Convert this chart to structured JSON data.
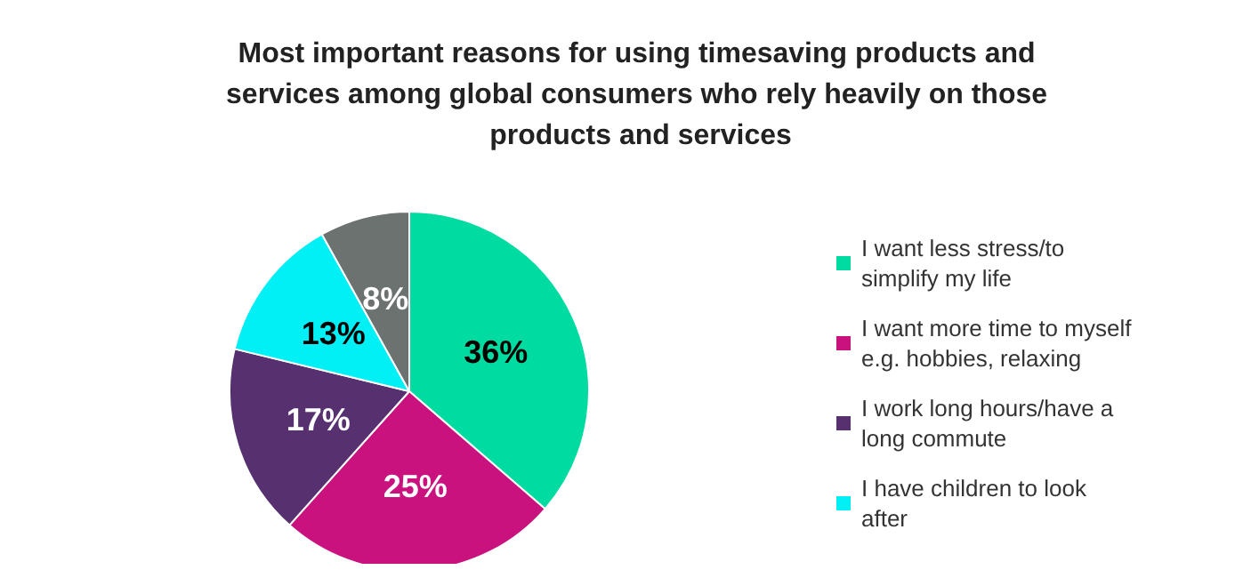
{
  "chart_data": {
    "type": "pie",
    "title": "Most important reasons for using timesaving products and services among global consumers who rely heavily on those products and services",
    "categories": [
      "I want less stress/to simplify my life",
      "I want more time to myself e.g. hobbies, relaxing",
      "I work long hours/have a long commute",
      "I have children to look after",
      null
    ],
    "values": [
      36,
      25,
      17,
      13,
      8
    ],
    "colors": [
      "#00dba2",
      "#c9127d",
      "#56306f",
      "#00f0f5",
      "#6b7270"
    ],
    "value_labels": [
      "36%",
      "25%",
      "17%",
      "13%",
      "8%"
    ],
    "legend": "right"
  }
}
